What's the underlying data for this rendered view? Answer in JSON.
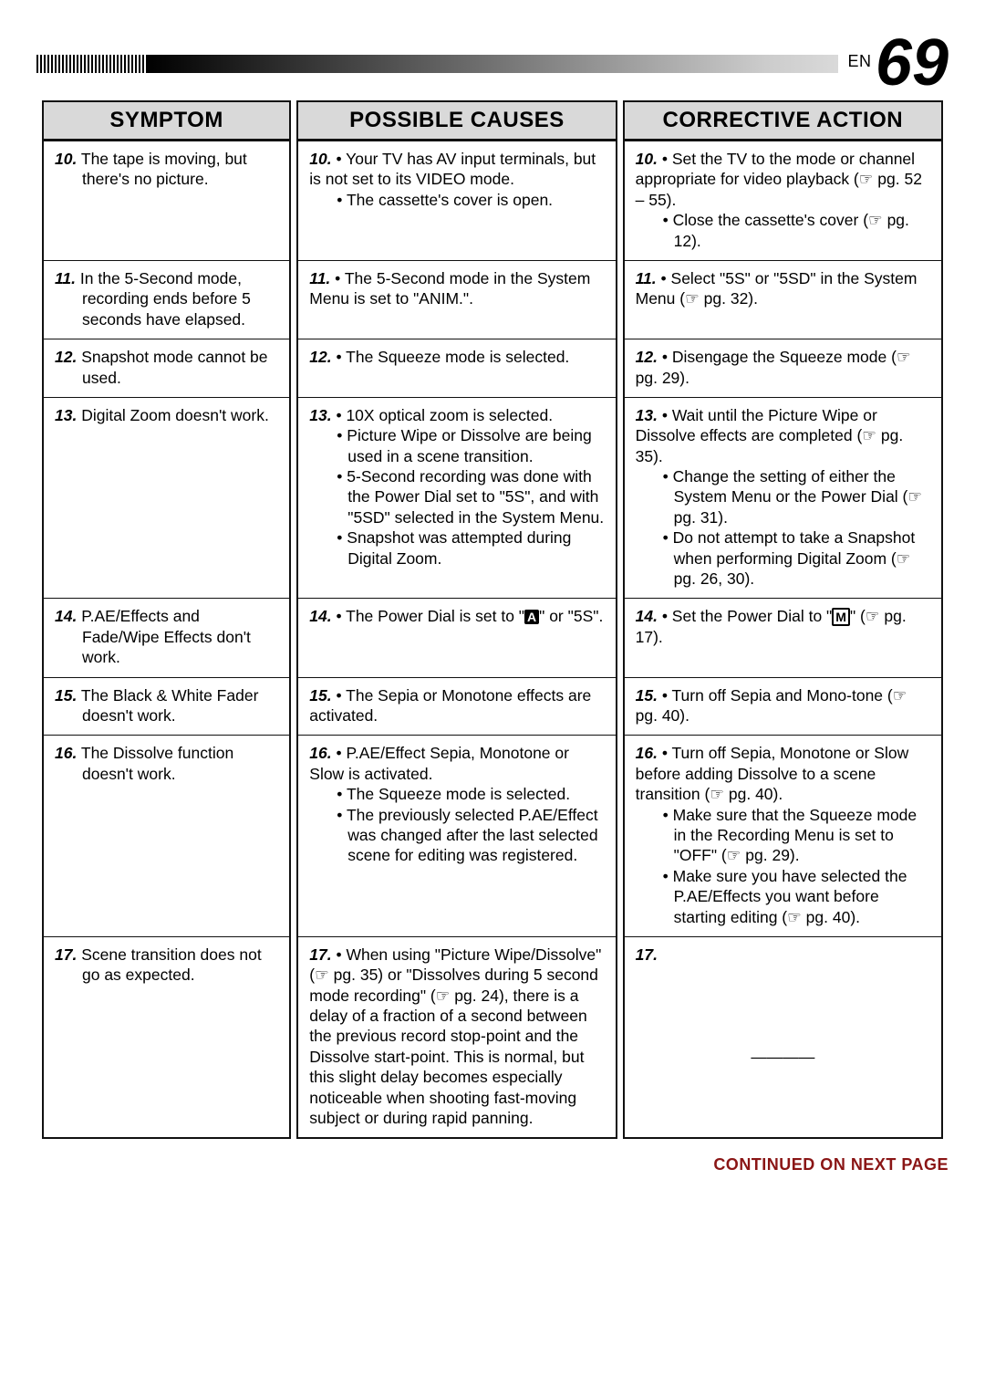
{
  "page": {
    "lang": "EN",
    "number": "69",
    "footer": "CONTINUED ON NEXT PAGE"
  },
  "headers": {
    "c1": "SYMPTOM",
    "c2": "POSSIBLE CAUSES",
    "c3": "CORRECTIVE ACTION"
  },
  "rows": [
    {
      "n": "10.",
      "symptom": "The tape is moving, but there's no picture.",
      "causes": [
        "Your TV has AV input terminals, but is not set to its VIDEO mode.",
        "The cassette's cover is open."
      ],
      "corr": [
        "Set the TV to the mode or channel appropriate for video playback (☞ pg. 52 – 55).",
        "Close the cassette's cover (☞ pg. 12)."
      ]
    },
    {
      "n": "11.",
      "symptom": "In the 5-Second mode, recording ends before 5 seconds have elapsed.",
      "causes": [
        "The 5-Second mode in the System Menu is set to \"ANIM.\"."
      ],
      "corr": [
        "Select \"5S\" or \"5SD\" in the System Menu (☞ pg. 32)."
      ]
    },
    {
      "n": "12.",
      "symptom": "Snapshot mode cannot be used.",
      "causes": [
        "The Squeeze mode is selected."
      ],
      "corr": [
        "Disengage the Squeeze mode (☞ pg. 29)."
      ]
    },
    {
      "n": "13.",
      "symptom": "Digital Zoom doesn't work.",
      "causes": [
        "10X optical zoom is selected.",
        "Picture Wipe or Dissolve are being used in a scene transition.",
        "5-Second recording was done with the Power Dial set to \"5S\", and with \"5SD\" selected in the System Menu.",
        "Snapshot was attempted during Digital Zoom."
      ],
      "corr": [
        "Wait until the Picture Wipe or Dissolve effects are completed (☞ pg. 35).",
        "Change the setting of either the System Menu or the Power Dial (☞ pg. 31).",
        "Do not attempt to take a Snapshot when performing Digital Zoom (☞ pg. 26, 30)."
      ]
    },
    {
      "n": "14.",
      "symptom": "P.AE/Effects and Fade/Wipe Effects don't work.",
      "cause_html": "The Power Dial is set to \"<span class='symA'>A</span>\" or \"5S\".",
      "corr_html": "Set the Power Dial to \"<span class='symM'>M</span>\" (☞ pg. 17)."
    },
    {
      "n": "15.",
      "symptom": "The Black & White Fader doesn't work.",
      "causes": [
        "The Sepia or Monotone effects are activated."
      ],
      "corr": [
        "Turn off Sepia and Mono-tone (☞ pg. 40)."
      ]
    },
    {
      "n": "16.",
      "symptom": "The Dissolve function doesn't work.",
      "causes": [
        "P.AE/Effect Sepia, Monotone or Slow is activated.",
        "The Squeeze mode is selected.",
        "The previously selected P.AE/Effect was changed after the last selected scene for editing was registered."
      ],
      "corr": [
        "Turn off Sepia, Monotone or Slow before adding Dissolve to a scene transition (☞ pg. 40).",
        "Make sure that the Squeeze mode in the Recording Menu is set to \"OFF\" (☞ pg. 29).",
        "Make sure you have selected the P.AE/Effects you want before starting editing (☞ pg. 40)."
      ]
    },
    {
      "n": "17.",
      "symptom": "Scene transition does not go as expected.",
      "causes": [
        "When using \"Picture Wipe/Dissolve\" (☞ pg. 35) or \"Dissolves during 5 second mode recording\" (☞ pg. 24), there is a delay of a fraction of a second between the previous record stop-point and the Dissolve start-point. This is normal, but this slight delay becomes especially noticeable when shooting fast-moving subject or during rapid panning."
      ],
      "corr_dash": "————"
    }
  ]
}
